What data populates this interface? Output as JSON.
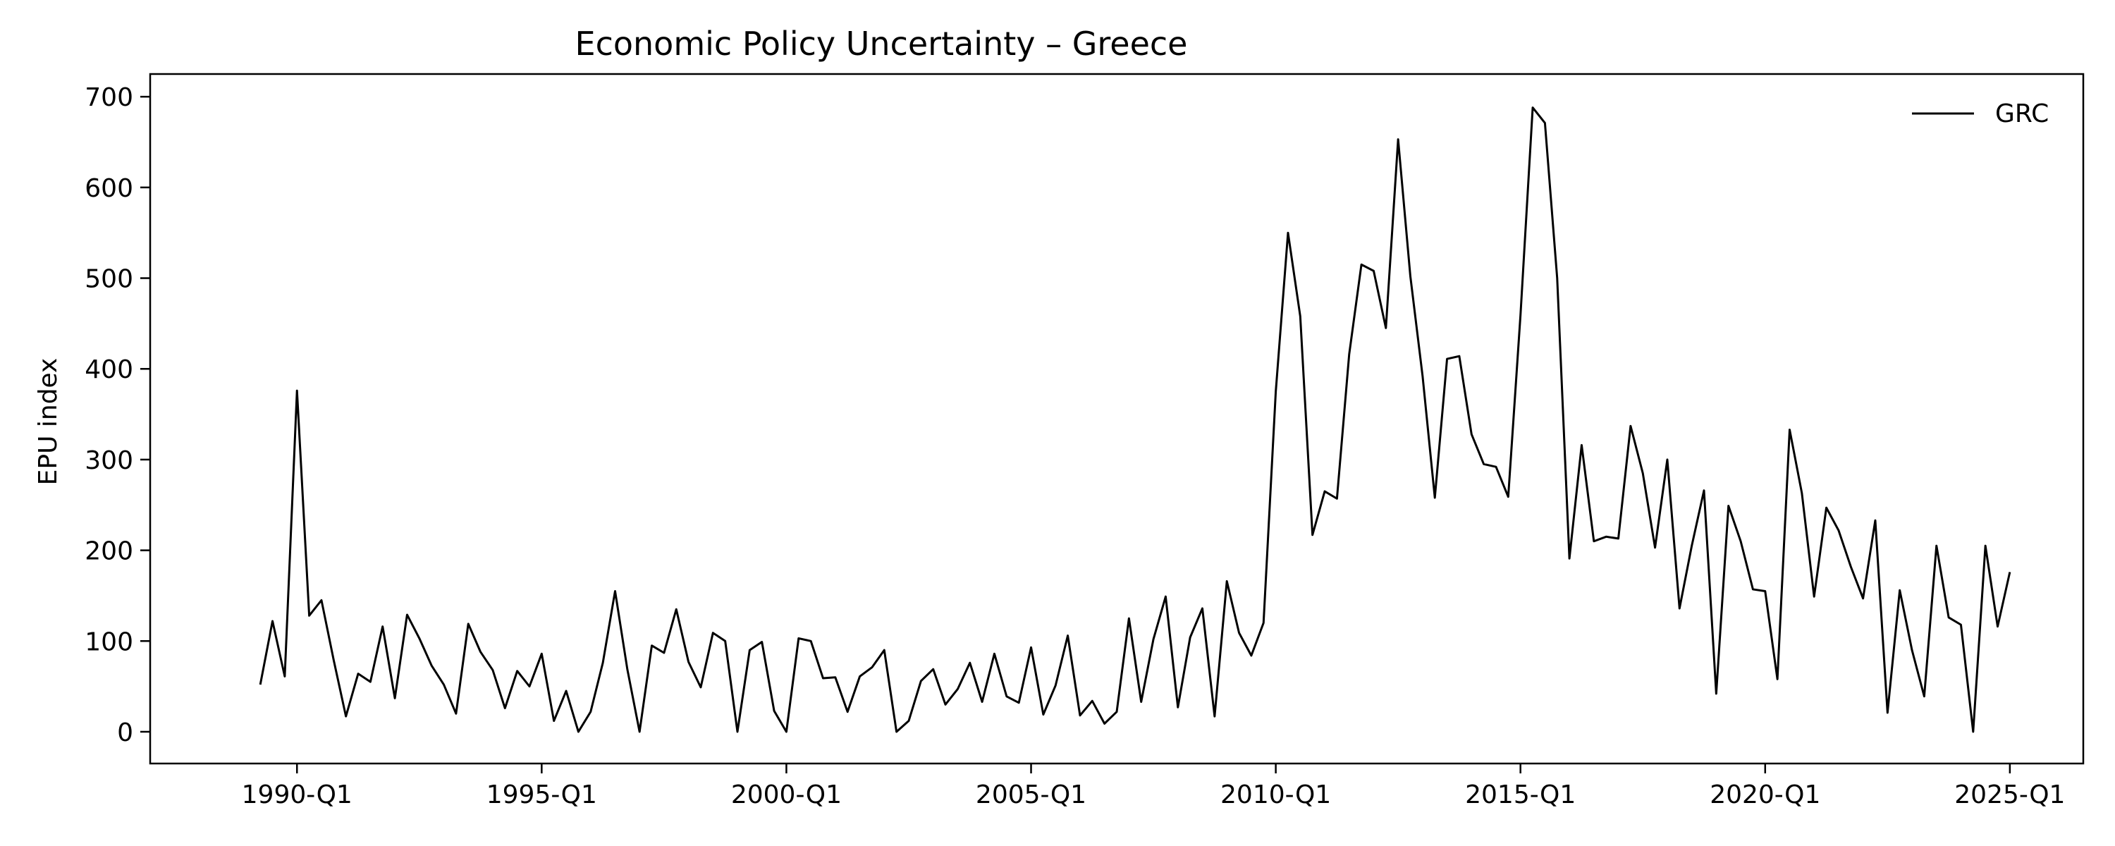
{
  "chart_data": {
    "type": "line",
    "title": "Economic Policy Uncertainty – Greece",
    "xlabel": "",
    "ylabel": "EPU index",
    "x_unit": "quarter",
    "x_start": "1989-Q2",
    "x_end": "2025-Q1",
    "xlim": [
      "1987-Q1",
      "2026-Q3"
    ],
    "ylim": [
      -35,
      725
    ],
    "y_ticks": [
      0,
      100,
      200,
      300,
      400,
      500,
      600,
      700
    ],
    "x_ticks": [
      "1990-Q1",
      "1995-Q1",
      "2000-Q1",
      "2005-Q1",
      "2010-Q1",
      "2015-Q1",
      "2020-Q1",
      "2025-Q1"
    ],
    "grid": false,
    "legend_position": "top-right",
    "line_color": "#000000",
    "series": [
      {
        "name": "GRC",
        "values": [
          52,
          122,
          61,
          376,
          128,
          145,
          79,
          17,
          64,
          55,
          116,
          37,
          129,
          103,
          73,
          52,
          20,
          119,
          88,
          68,
          26,
          67,
          50,
          86,
          12,
          45,
          0,
          22,
          76,
          155,
          69,
          0,
          95,
          87,
          135,
          77,
          49,
          109,
          100,
          0,
          90,
          99,
          23,
          0,
          103,
          100,
          59,
          60,
          22,
          61,
          71,
          90,
          0,
          12,
          56,
          69,
          30,
          47,
          76,
          33,
          86,
          39,
          32,
          93,
          19,
          51,
          106,
          18,
          34,
          9,
          22,
          125,
          33,
          102,
          149,
          27,
          104,
          136,
          17,
          166,
          109,
          84,
          120,
          375,
          550,
          458,
          217,
          265,
          257,
          416,
          515,
          508,
          445,
          653,
          502,
          392,
          258,
          411,
          414,
          328,
          295,
          292,
          259,
          459,
          688,
          671,
          500,
          191,
          316,
          210,
          215,
          213,
          337,
          285,
          203,
          300,
          136,
          205,
          266,
          42,
          249,
          210,
          157,
          155,
          58,
          333,
          263,
          149,
          247,
          222,
          182,
          147,
          233,
          21,
          156,
          90,
          39,
          205,
          126,
          118,
          0,
          205,
          116,
          176
        ]
      }
    ]
  }
}
